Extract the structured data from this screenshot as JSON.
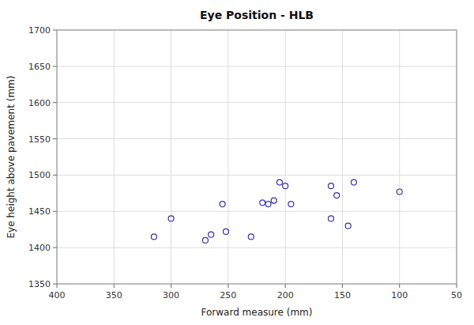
{
  "chart_data": {
    "type": "scatter",
    "title": "Eye Position - HLB",
    "xlabel": "Forward measure (mm)",
    "ylabel": "Eye height above pavement (mm)",
    "x": [
      315,
      300,
      270,
      265,
      255,
      252,
      230,
      210,
      205,
      200,
      195,
      220,
      215,
      160,
      160,
      155,
      145,
      140,
      100
    ],
    "values": [
      1415,
      1440,
      1410,
      1418,
      1460,
      1422,
      1415,
      1465,
      1490,
      1485,
      1460,
      1462,
      1460,
      1440,
      1485,
      1472,
      1430,
      1490,
      1477
    ],
    "color": "#3333AA",
    "marker": "circle",
    "xlim": [
      400,
      50
    ],
    "ylim": [
      1350,
      1700
    ],
    "xticks": [
      400,
      350,
      300,
      250,
      200,
      150,
      100,
      50
    ],
    "yticks": [
      1350,
      1400,
      1450,
      1500,
      1550,
      1600,
      1650,
      1700
    ],
    "grid": true
  }
}
